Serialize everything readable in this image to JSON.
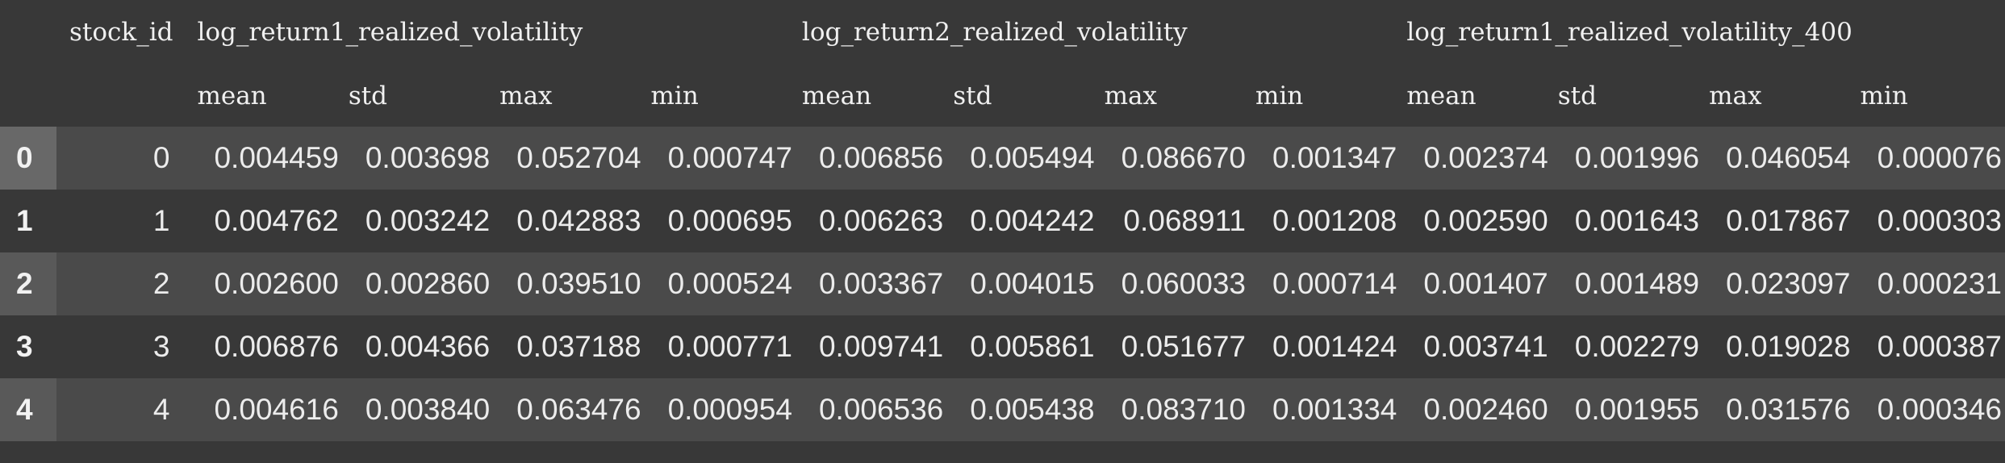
{
  "table": {
    "index_header": "",
    "stock_id_header": "stock_id",
    "groups": [
      {
        "label": "log_return1_realized_volatility",
        "span": 4
      },
      {
        "label": "log_return2_realized_volatility",
        "span": 4
      },
      {
        "label": "log_return1_realized_volatility_400",
        "span": 4
      }
    ],
    "subheaders": [
      "mean",
      "std",
      "max",
      "min",
      "mean",
      "std",
      "max",
      "min",
      "mean",
      "std",
      "max",
      "min"
    ],
    "rows": [
      {
        "index": "0",
        "stock_id": "0",
        "values": [
          "0.004459",
          "0.003698",
          "0.052704",
          "0.000747",
          "0.006856",
          "0.005494",
          "0.086670",
          "0.001347",
          "0.002374",
          "0.001996",
          "0.046054",
          "0.000076"
        ]
      },
      {
        "index": "1",
        "stock_id": "1",
        "values": [
          "0.004762",
          "0.003242",
          "0.042883",
          "0.000695",
          "0.006263",
          "0.004242",
          "0.068911",
          "0.001208",
          "0.002590",
          "0.001643",
          "0.017867",
          "0.000303"
        ]
      },
      {
        "index": "2",
        "stock_id": "2",
        "values": [
          "0.002600",
          "0.002860",
          "0.039510",
          "0.000524",
          "0.003367",
          "0.004015",
          "0.060033",
          "0.000714",
          "0.001407",
          "0.001489",
          "0.023097",
          "0.000231"
        ]
      },
      {
        "index": "3",
        "stock_id": "3",
        "values": [
          "0.006876",
          "0.004366",
          "0.037188",
          "0.000771",
          "0.009741",
          "0.005861",
          "0.051677",
          "0.001424",
          "0.003741",
          "0.002279",
          "0.019028",
          "0.000387"
        ]
      },
      {
        "index": "4",
        "stock_id": "4",
        "values": [
          "0.004616",
          "0.003840",
          "0.063476",
          "0.000954",
          "0.006536",
          "0.005438",
          "0.083710",
          "0.001334",
          "0.002460",
          "0.001955",
          "0.031576",
          "0.000346"
        ]
      }
    ]
  },
  "colors": {
    "background": "#383838",
    "row_even": "#4a4a4a",
    "index_cell_even": "#595959",
    "index_cell_hover": "#686868",
    "text": "#ececec"
  }
}
